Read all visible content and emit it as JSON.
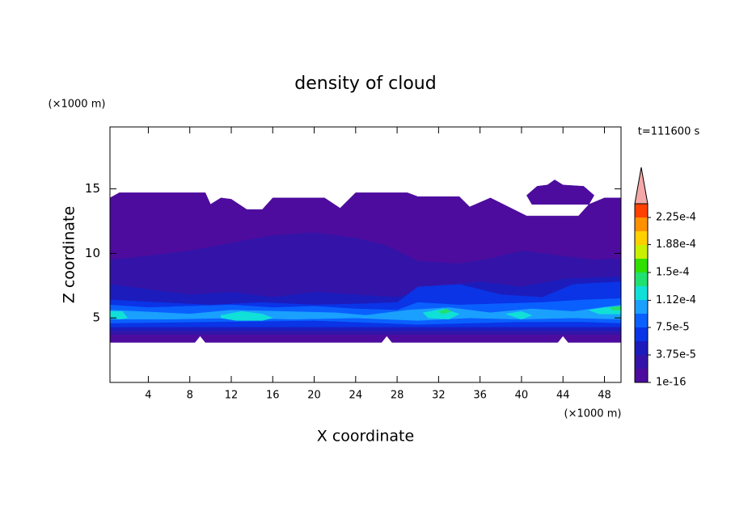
{
  "chart_data": {
    "type": "contour",
    "title": "density of cloud",
    "x_label": "X coordinate",
    "y_label": "Z coordinate",
    "x_unit": "(×1000 m)",
    "y_unit": "(×1000 m)",
    "annotation": "t=111600 s",
    "xlim": [
      0.3,
      49.6
    ],
    "ylim": [
      0,
      19.8
    ],
    "xticks": [
      4,
      8,
      12,
      16,
      20,
      24,
      28,
      32,
      36,
      40,
      44,
      48
    ],
    "yticks": [
      5,
      10,
      15
    ],
    "clim": [
      1e-16,
      0.00024375
    ],
    "levels": [
      1e-16,
      1.875e-05,
      3.75e-05,
      5.625e-05,
      7.5e-05,
      9.375e-05,
      0.0001125,
      0.00013125,
      0.00015,
      0.00016875,
      0.0001875,
      0.00020625,
      0.000225
    ],
    "colors": [
      "#4d0c9e",
      "#3414a8",
      "#1c1cbc",
      "#0a34e6",
      "#0a60ff",
      "#1aa0ff",
      "#10e0d8",
      "#20e070",
      "#30e000",
      "#c8f000",
      "#ffd000",
      "#ff9000",
      "#ff4000"
    ],
    "extend_color": "#f4a8a8",
    "cticks": [
      {
        "value": 1e-16,
        "label": "1e-16"
      },
      {
        "value": 3.75e-05,
        "label": "3.75e-5"
      },
      {
        "value": 7.5e-05,
        "label": "7.5e-5"
      },
      {
        "value": 0.000112,
        "label": "1.12e-4"
      },
      {
        "value": 0.00015,
        "label": "1.5e-4"
      },
      {
        "value": 0.000188,
        "label": "1.88e-4"
      },
      {
        "value": 0.000225,
        "label": "2.25e-4"
      }
    ],
    "regions": [
      {
        "value": 1e-16,
        "x": [
          0.3,
          1.2,
          9.5,
          10,
          11,
          12,
          13.5,
          15,
          16,
          21,
          22.5,
          24,
          29,
          30,
          34,
          35,
          37,
          40.5,
          45.5,
          46.5,
          48,
          49.6,
          49.6,
          44.5,
          44,
          43.5,
          27.5,
          27,
          26.5,
          9.5,
          9,
          8.5,
          0.3
        ],
        "z": [
          14.3,
          14.7,
          14.7,
          13.8,
          14.3,
          14.2,
          13.4,
          13.4,
          14.3,
          14.3,
          13.5,
          14.7,
          14.7,
          14.4,
          14.4,
          13.6,
          14.3,
          12.9,
          12.9,
          13.8,
          14.3,
          14.3,
          3.1,
          3.1,
          3.6,
          3.1,
          3.1,
          3.6,
          3.1,
          3.1,
          3.6,
          3.1,
          3.1
        ]
      },
      {
        "value": 1e-16,
        "x": [
          40.5,
          41.5,
          42.5,
          43.2,
          44,
          46,
          47,
          46.5,
          41,
          40.5
        ],
        "z": [
          14.5,
          15.2,
          15.3,
          15.7,
          15.3,
          15.2,
          14.5,
          13.8,
          13.8,
          14.5
        ]
      },
      {
        "value": 1.875e-05,
        "x": [
          0.3,
          4,
          8,
          12,
          16,
          20,
          24,
          27,
          30,
          34,
          37,
          40,
          44,
          47,
          49.6,
          49.6,
          0.3
        ],
        "z": [
          9.5,
          9.8,
          10.2,
          10.8,
          11.4,
          11.6,
          11.2,
          10.6,
          9.4,
          9.2,
          9.6,
          10.2,
          9.8,
          9.5,
          9.6,
          3.7,
          3.7
        ]
      },
      {
        "value": 3.75e-05,
        "x": [
          0.3,
          4,
          8,
          12,
          16,
          20,
          24,
          28,
          32,
          36,
          40,
          44,
          49.6,
          49.6,
          0.3
        ],
        "z": [
          7.6,
          7.2,
          6.8,
          7.0,
          6.6,
          7.0,
          6.8,
          6.6,
          7.4,
          7.8,
          7.4,
          8.0,
          8.2,
          4.0,
          4.0
        ]
      },
      {
        "value": 5.625e-05,
        "x": [
          0.3,
          5,
          10,
          15,
          20,
          25,
          28,
          30,
          34,
          38,
          42,
          45,
          49.6,
          49.6,
          0.3
        ],
        "z": [
          6.4,
          6.2,
          6.0,
          6.2,
          6.0,
          6.1,
          6.2,
          7.4,
          7.6,
          6.8,
          6.6,
          7.6,
          7.8,
          4.3,
          4.3
        ]
      },
      {
        "value": 7.5e-05,
        "x": [
          0.3,
          4,
          8,
          12,
          16,
          20,
          24,
          28,
          30,
          34,
          38,
          42,
          46,
          49.6,
          49.6,
          46,
          40,
          30,
          20,
          10,
          0.3
        ],
        "z": [
          6.0,
          5.8,
          5.9,
          6.0,
          5.8,
          5.9,
          5.7,
          5.6,
          6.2,
          6.0,
          6.1,
          6.2,
          6.4,
          6.5,
          4.6,
          4.7,
          4.7,
          4.5,
          4.8,
          4.7,
          4.6
        ]
      },
      {
        "value": 9.375e-05,
        "x": [
          0.3,
          3,
          8,
          12,
          17,
          22,
          25,
          29,
          33,
          37,
          41,
          45,
          49.6,
          49.6,
          45,
          40,
          35,
          30,
          24,
          18,
          12,
          6,
          0.3
        ],
        "z": [
          5.6,
          5.5,
          5.3,
          5.6,
          5.5,
          5.4,
          5.2,
          5.6,
          5.8,
          5.4,
          5.7,
          5.5,
          6.0,
          4.9,
          5.0,
          4.9,
          5.0,
          4.8,
          5.0,
          4.9,
          5.0,
          4.9,
          4.9
        ]
      },
      {
        "value": 0.0001125,
        "x": [
          0.3,
          1.5,
          2,
          1.2,
          0.3
        ],
        "z": [
          5.5,
          5.5,
          5.0,
          4.9,
          5.0
        ]
      },
      {
        "value": 0.0001125,
        "x": [
          11,
          13,
          15,
          16,
          15,
          12.5,
          11
        ],
        "z": [
          5.2,
          5.5,
          5.3,
          5.0,
          4.8,
          4.8,
          5.0
        ]
      },
      {
        "value": 0.0001125,
        "x": [
          30.5,
          32.5,
          34,
          33,
          31,
          30.5
        ],
        "z": [
          5.4,
          5.7,
          5.3,
          4.9,
          5.0,
          5.4
        ]
      },
      {
        "value": 0.0001125,
        "x": [
          38.5,
          40,
          41,
          40,
          38.5
        ],
        "z": [
          5.3,
          5.5,
          5.2,
          4.9,
          5.3
        ]
      },
      {
        "value": 0.0001125,
        "x": [
          46.5,
          48,
          49.6,
          49.6,
          47.5,
          46.5
        ],
        "z": [
          5.6,
          5.8,
          5.9,
          5.3,
          5.3,
          5.6
        ]
      },
      {
        "value": 0.00013125,
        "x": [
          32,
          32.8,
          33.2,
          32.4,
          32
        ],
        "z": [
          5.5,
          5.7,
          5.5,
          5.3,
          5.5
        ]
      },
      {
        "value": 0.00013125,
        "x": [
          48.5,
          49.6,
          49.6,
          48.8,
          48.5
        ],
        "z": [
          5.8,
          5.9,
          5.6,
          5.6,
          5.8
        ]
      }
    ]
  }
}
